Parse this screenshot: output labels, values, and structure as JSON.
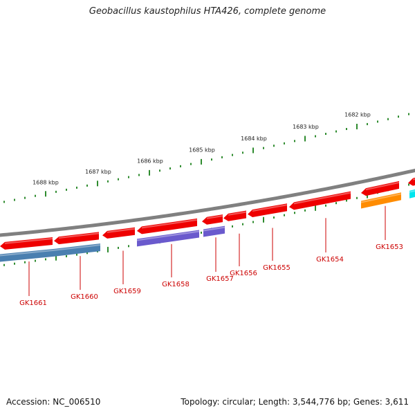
{
  "title": "Geobacillus kaustophilus HTA426, complete genome",
  "footer": {
    "accession": "Accession: NC_006510",
    "summary": "Topology: circular; Length: 3,544,776 bp; Genes: 3,611"
  },
  "scale_labels": [
    "1688 kbp",
    "1687 kbp",
    "1686 kbp",
    "1685 kbp",
    "1684 kbp",
    "1683 kbp",
    "1682 kbp"
  ],
  "gene_labels": [
    "GK1661",
    "GK1660",
    "GK1659",
    "GK1658",
    "GK1657",
    "GK1656",
    "GK1655",
    "GK1654",
    "GK1653"
  ],
  "colors": {
    "backbone": "#808080",
    "ticks": "#2e8b2e",
    "gene_red": "#ee0000",
    "gene_steelblue": "#4a7fb0",
    "gene_purple": "#6a5acd",
    "gene_orange": "#ff8c00",
    "gene_cyan": "#00e5ee",
    "label_red": "#cc0000"
  }
}
